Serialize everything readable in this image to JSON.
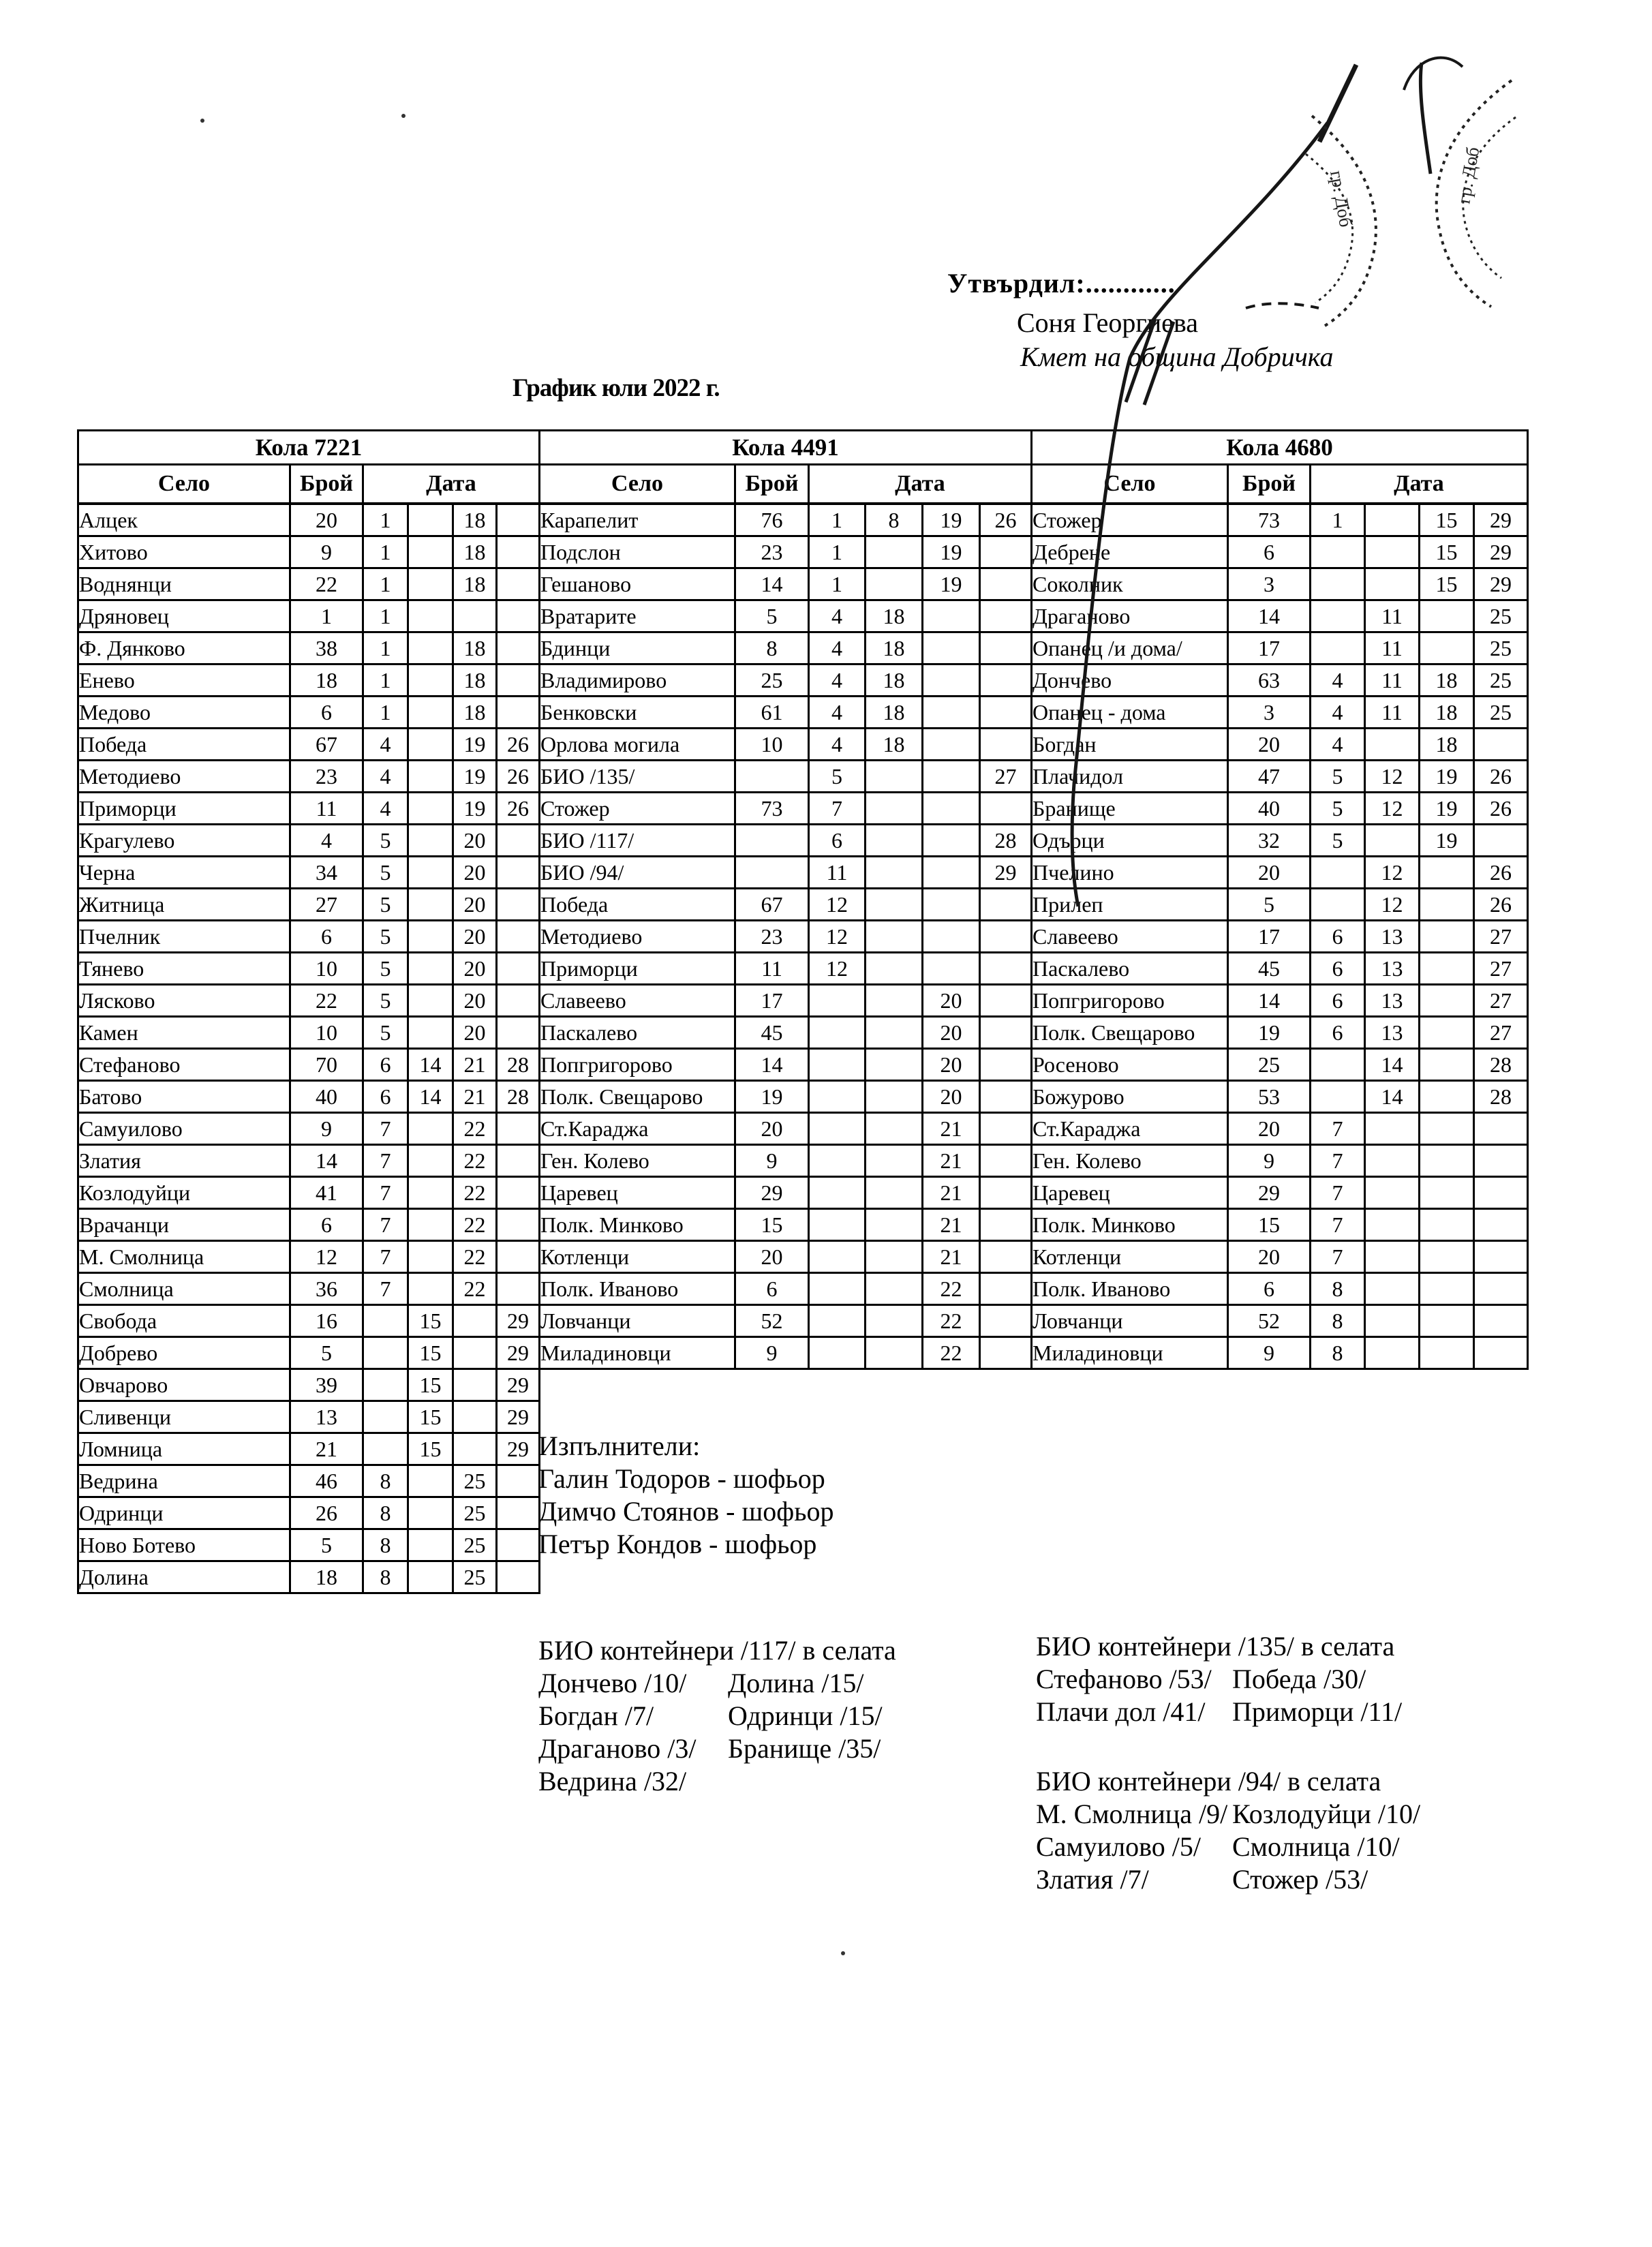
{
  "approval": {
    "label": "Утвърдил:............",
    "name": "Соня Георгиева",
    "role": "Кмет  на община Добричка"
  },
  "title": "График юли 2022 г.",
  "headers": {
    "village": "Село",
    "count": "Брой",
    "date": "Дата"
  },
  "tables": [
    {
      "car": "Кола 7221",
      "rows": [
        [
          "Алцек",
          "20",
          "1",
          "",
          "18",
          ""
        ],
        [
          "Хитово",
          "9",
          "1",
          "",
          "18",
          ""
        ],
        [
          "Воднянци",
          "22",
          "1",
          "",
          "18",
          ""
        ],
        [
          "Дряновец",
          "1",
          "1",
          "",
          "",
          ""
        ],
        [
          "Ф. Дянково",
          "38",
          "1",
          "",
          "18",
          ""
        ],
        [
          "Енево",
          "18",
          "1",
          "",
          "18",
          ""
        ],
        [
          "Медово",
          "6",
          "1",
          "",
          "18",
          ""
        ],
        [
          "Победа",
          "67",
          "4",
          "",
          "19",
          "26"
        ],
        [
          "Методиево",
          "23",
          "4",
          "",
          "19",
          "26"
        ],
        [
          "Приморци",
          "11",
          "4",
          "",
          "19",
          "26"
        ],
        [
          "Крагулево",
          "4",
          "5",
          "",
          "20",
          ""
        ],
        [
          "Черна",
          "34",
          "5",
          "",
          "20",
          ""
        ],
        [
          "Житница",
          "27",
          "5",
          "",
          "20",
          ""
        ],
        [
          "Пчелник",
          "6",
          "5",
          "",
          "20",
          ""
        ],
        [
          "Тянево",
          "10",
          "5",
          "",
          "20",
          ""
        ],
        [
          "Лясково",
          "22",
          "5",
          "",
          "20",
          ""
        ],
        [
          "Камен",
          "10",
          "5",
          "",
          "20",
          ""
        ],
        [
          "Стефаново",
          "70",
          "6",
          "14",
          "21",
          "28"
        ],
        [
          "Батово",
          "40",
          "6",
          "14",
          "21",
          "28"
        ],
        [
          "Самуилово",
          "9",
          "7",
          "",
          "22",
          ""
        ],
        [
          "Златия",
          "14",
          "7",
          "",
          "22",
          ""
        ],
        [
          "Козлодуйци",
          "41",
          "7",
          "",
          "22",
          ""
        ],
        [
          "Врачанци",
          "6",
          "7",
          "",
          "22",
          ""
        ],
        [
          "М. Смолница",
          "12",
          "7",
          "",
          "22",
          ""
        ],
        [
          "Смолница",
          "36",
          "7",
          "",
          "22",
          ""
        ],
        [
          "Свобода",
          "16",
          "",
          "15",
          "",
          "29"
        ],
        [
          "Добрево",
          "5",
          "",
          "15",
          "",
          "29"
        ],
        [
          "Овчарово",
          "39",
          "",
          "15",
          "",
          "29"
        ],
        [
          "Сливенци",
          "13",
          "",
          "15",
          "",
          "29"
        ],
        [
          "Ломница",
          "21",
          "",
          "15",
          "",
          "29"
        ],
        [
          "Ведрина",
          "46",
          "8",
          "",
          "25",
          ""
        ],
        [
          "Одринци",
          "26",
          "8",
          "",
          "25",
          ""
        ],
        [
          "Ново Ботево",
          "5",
          "8",
          "",
          "25",
          ""
        ],
        [
          "Долина",
          "18",
          "8",
          "",
          "25",
          ""
        ]
      ]
    },
    {
      "car": "Кола 4491",
      "rows": [
        [
          "Карапелит",
          "76",
          "1",
          "8",
          "19",
          "26"
        ],
        [
          "Подслон",
          "23",
          "1",
          "",
          "19",
          ""
        ],
        [
          "Гешаново",
          "14",
          "1",
          "",
          "19",
          ""
        ],
        [
          "Вратарите",
          "5",
          "4",
          "18",
          "",
          ""
        ],
        [
          "Бдинци",
          "8",
          "4",
          "18",
          "",
          ""
        ],
        [
          "Владимирово",
          "25",
          "4",
          "18",
          "",
          ""
        ],
        [
          "Бенковски",
          "61",
          "4",
          "18",
          "",
          ""
        ],
        [
          "Орлова могила",
          "10",
          "4",
          "18",
          "",
          ""
        ],
        [
          "БИО /135/",
          "",
          "5",
          "",
          "",
          "27"
        ],
        [
          "Стожер",
          "73",
          "7",
          "",
          "",
          ""
        ],
        [
          "БИО /117/",
          "",
          "6",
          "",
          "",
          "28"
        ],
        [
          "БИО /94/",
          "",
          "11",
          "",
          "",
          "29"
        ],
        [
          "Победа",
          "67",
          "12",
          "",
          "",
          ""
        ],
        [
          "Методиево",
          "23",
          "12",
          "",
          "",
          ""
        ],
        [
          "Приморци",
          "11",
          "12",
          "",
          "",
          ""
        ],
        [
          "Славеево",
          "17",
          "",
          "",
          "20",
          ""
        ],
        [
          "Паскалево",
          "45",
          "",
          "",
          "20",
          ""
        ],
        [
          "Попгригорово",
          "14",
          "",
          "",
          "20",
          ""
        ],
        [
          "Полк. Свещарово",
          "19",
          "",
          "",
          "20",
          ""
        ],
        [
          "Ст.Караджа",
          "20",
          "",
          "",
          "21",
          ""
        ],
        [
          "Ген. Колево",
          "9",
          "",
          "",
          "21",
          ""
        ],
        [
          "Царевец",
          "29",
          "",
          "",
          "21",
          ""
        ],
        [
          "Полк. Минково",
          "15",
          "",
          "",
          "21",
          ""
        ],
        [
          "Котленци",
          "20",
          "",
          "",
          "21",
          ""
        ],
        [
          "Полк. Иваново",
          "6",
          "",
          "",
          "22",
          ""
        ],
        [
          "Ловчанци",
          "52",
          "",
          "",
          "22",
          ""
        ],
        [
          "Миладиновци",
          "9",
          "",
          "",
          "22",
          ""
        ]
      ]
    },
    {
      "car": "Кола 4680",
      "rows": [
        [
          "Стожер",
          "73",
          "1",
          "",
          "15",
          "29"
        ],
        [
          "Дебрене",
          "6",
          "",
          "",
          "15",
          "29"
        ],
        [
          "Соколник",
          "3",
          "",
          "",
          "15",
          "29"
        ],
        [
          "Драганово",
          "14",
          "",
          "11",
          "",
          "25"
        ],
        [
          "Опанец /и дома/",
          "17",
          "",
          "11",
          "",
          "25"
        ],
        [
          "Дончево",
          "63",
          "4",
          "11",
          "18",
          "25"
        ],
        [
          "Опанец - дома",
          "3",
          "4",
          "11",
          "18",
          "25"
        ],
        [
          "Богдан",
          "20",
          "4",
          "",
          "18",
          ""
        ],
        [
          "Плачидол",
          "47",
          "5",
          "12",
          "19",
          "26"
        ],
        [
          "Бранище",
          "40",
          "5",
          "12",
          "19",
          "26"
        ],
        [
          "Одърци",
          "32",
          "5",
          "",
          "19",
          ""
        ],
        [
          "Пчелино",
          "20",
          "",
          "12",
          "",
          "26"
        ],
        [
          "Прилеп",
          "5",
          "",
          "12",
          "",
          "26"
        ],
        [
          "Славеево",
          "17",
          "6",
          "13",
          "",
          "27"
        ],
        [
          "Паскалево",
          "45",
          "6",
          "13",
          "",
          "27"
        ],
        [
          "Попгригорово",
          "14",
          "6",
          "13",
          "",
          "27"
        ],
        [
          "Полк. Свещарово",
          "19",
          "6",
          "13",
          "",
          "27"
        ],
        [
          "Росеново",
          "25",
          "",
          "14",
          "",
          "28"
        ],
        [
          "Божурово",
          "53",
          "",
          "14",
          "",
          "28"
        ],
        [
          "Ст.Караджа",
          "20",
          "7",
          "",
          "",
          ""
        ],
        [
          "Ген. Колево",
          "9",
          "7",
          "",
          "",
          ""
        ],
        [
          "Царевец",
          "29",
          "7",
          "",
          "",
          ""
        ],
        [
          "Полк. Минково",
          "15",
          "7",
          "",
          "",
          ""
        ],
        [
          "Котленци",
          "20",
          "7",
          "",
          "",
          ""
        ],
        [
          "Полк. Иваново",
          "6",
          "8",
          "",
          "",
          ""
        ],
        [
          "Ловчанци",
          "52",
          "8",
          "",
          "",
          ""
        ],
        [
          "Миладиновци",
          "9",
          "8",
          "",
          "",
          ""
        ]
      ]
    }
  ],
  "executors": {
    "label": "Изпълнители:",
    "names": [
      "Галин Тодоров - шофьор",
      "Димчо Стоянов - шофьор",
      "Петър Кондов - шофьор"
    ]
  },
  "bio": [
    {
      "title": "БИО контейнери /117/ в селата",
      "rows": [
        [
          "Дончево /10/",
          "Долина /15/"
        ],
        [
          "Богдан /7/",
          "Одринци /15/"
        ],
        [
          "Драганово /3/",
          "Бранище /35/"
        ],
        [
          "Ведрина /32/",
          ""
        ]
      ]
    },
    {
      "title": "БИО контейнери /135/ в селата",
      "rows": [
        [
          "Стефаново /53/",
          "Победа /30/"
        ],
        [
          "Плачи дол /41/",
          "Приморци /11/"
        ]
      ]
    },
    {
      "title": "БИО контейнери /94/ в селата",
      "rows": [
        [
          "М. Смолница /9/",
          "Козлодуйци /10/"
        ],
        [
          "Самуилово /5/",
          "Смолница /10/"
        ],
        [
          "Златия /7/",
          "Стожер /53/"
        ]
      ]
    }
  ],
  "stamps": {
    "a": "гр. Доб",
    "b": "гр. Доб"
  }
}
